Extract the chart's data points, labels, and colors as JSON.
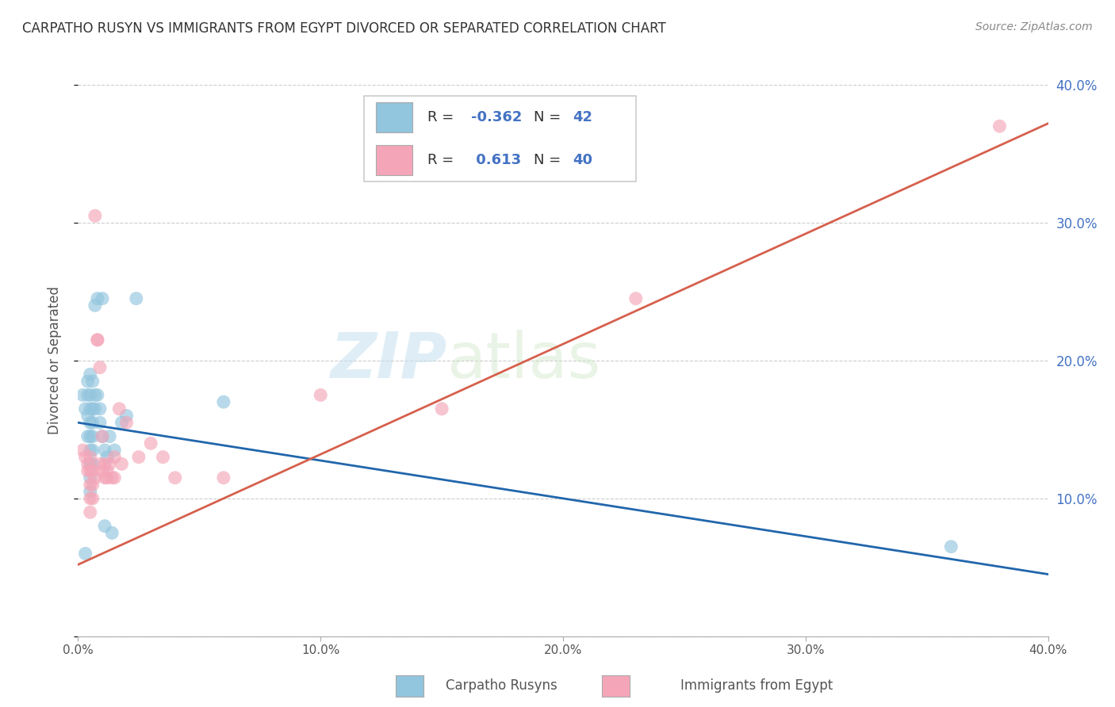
{
  "title": "CARPATHO RUSYN VS IMMIGRANTS FROM EGYPT DIVORCED OR SEPARATED CORRELATION CHART",
  "source": "Source: ZipAtlas.com",
  "ylabel": "Divorced or Separated",
  "legend_label1": "Carpatho Rusyns",
  "legend_label2": "Immigrants from Egypt",
  "r1": -0.362,
  "n1": 42,
  "r2": 0.613,
  "n2": 40,
  "xlim": [
    0.0,
    0.4
  ],
  "ylim": [
    0.0,
    0.4
  ],
  "color_blue": "#92c5de",
  "color_pink": "#f4a6b8",
  "line_blue": "#2166ac",
  "line_pink": "#d6604d",
  "watermark_zip": "ZIP",
  "watermark_atlas": "atlas",
  "blue_scatter": [
    [
      0.002,
      0.175
    ],
    [
      0.003,
      0.165
    ],
    [
      0.004,
      0.185
    ],
    [
      0.004,
      0.175
    ],
    [
      0.004,
      0.16
    ],
    [
      0.004,
      0.145
    ],
    [
      0.005,
      0.19
    ],
    [
      0.005,
      0.175
    ],
    [
      0.005,
      0.165
    ],
    [
      0.005,
      0.155
    ],
    [
      0.005,
      0.145
    ],
    [
      0.005,
      0.135
    ],
    [
      0.005,
      0.125
    ],
    [
      0.005,
      0.115
    ],
    [
      0.005,
      0.105
    ],
    [
      0.006,
      0.185
    ],
    [
      0.006,
      0.165
    ],
    [
      0.006,
      0.155
    ],
    [
      0.006,
      0.145
    ],
    [
      0.006,
      0.135
    ],
    [
      0.006,
      0.125
    ],
    [
      0.007,
      0.24
    ],
    [
      0.007,
      0.175
    ],
    [
      0.007,
      0.165
    ],
    [
      0.008,
      0.175
    ],
    [
      0.008,
      0.245
    ],
    [
      0.009,
      0.165
    ],
    [
      0.009,
      0.155
    ],
    [
      0.01,
      0.145
    ],
    [
      0.01,
      0.245
    ],
    [
      0.011,
      0.08
    ],
    [
      0.011,
      0.135
    ],
    [
      0.012,
      0.13
    ],
    [
      0.013,
      0.145
    ],
    [
      0.014,
      0.075
    ],
    [
      0.015,
      0.135
    ],
    [
      0.018,
      0.155
    ],
    [
      0.02,
      0.16
    ],
    [
      0.024,
      0.245
    ],
    [
      0.06,
      0.17
    ],
    [
      0.36,
      0.065
    ],
    [
      0.003,
      0.06
    ]
  ],
  "pink_scatter": [
    [
      0.002,
      0.135
    ],
    [
      0.003,
      0.13
    ],
    [
      0.004,
      0.125
    ],
    [
      0.004,
      0.12
    ],
    [
      0.005,
      0.13
    ],
    [
      0.005,
      0.12
    ],
    [
      0.005,
      0.11
    ],
    [
      0.005,
      0.1
    ],
    [
      0.005,
      0.09
    ],
    [
      0.006,
      0.12
    ],
    [
      0.006,
      0.11
    ],
    [
      0.006,
      0.1
    ],
    [
      0.007,
      0.305
    ],
    [
      0.007,
      0.115
    ],
    [
      0.008,
      0.215
    ],
    [
      0.008,
      0.215
    ],
    [
      0.009,
      0.195
    ],
    [
      0.009,
      0.125
    ],
    [
      0.01,
      0.145
    ],
    [
      0.01,
      0.12
    ],
    [
      0.011,
      0.125
    ],
    [
      0.011,
      0.115
    ],
    [
      0.012,
      0.12
    ],
    [
      0.012,
      0.115
    ],
    [
      0.013,
      0.125
    ],
    [
      0.014,
      0.115
    ],
    [
      0.015,
      0.13
    ],
    [
      0.015,
      0.115
    ],
    [
      0.017,
      0.165
    ],
    [
      0.018,
      0.125
    ],
    [
      0.02,
      0.155
    ],
    [
      0.025,
      0.13
    ],
    [
      0.03,
      0.14
    ],
    [
      0.035,
      0.13
    ],
    [
      0.04,
      0.115
    ],
    [
      0.06,
      0.115
    ],
    [
      0.1,
      0.175
    ],
    [
      0.15,
      0.165
    ],
    [
      0.23,
      0.245
    ],
    [
      0.38,
      0.37
    ]
  ]
}
